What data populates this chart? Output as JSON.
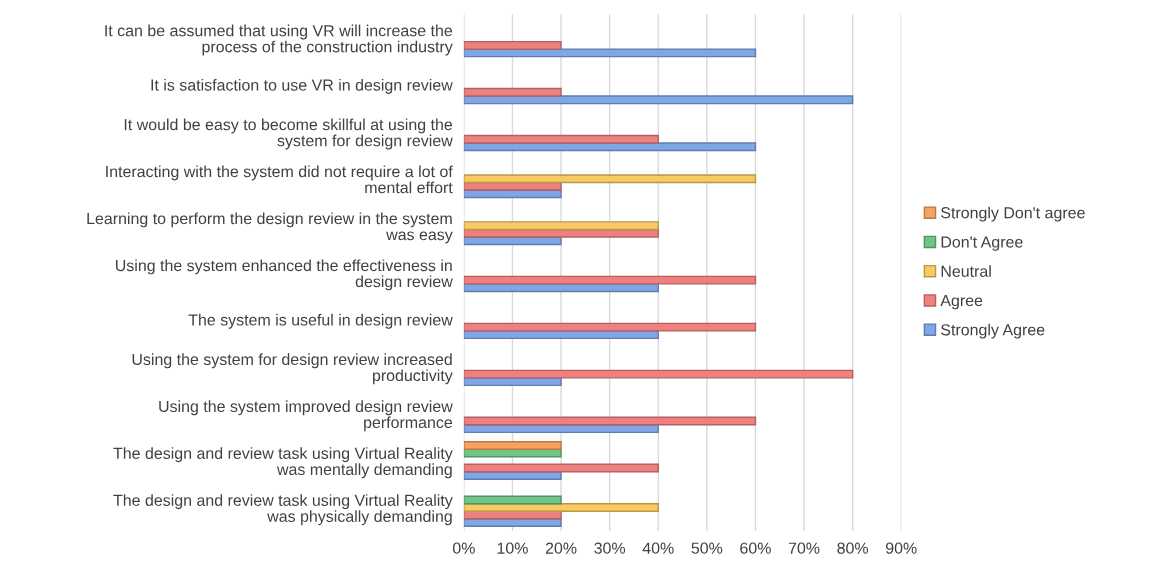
{
  "chart_data": {
    "type": "bar",
    "orientation": "horizontal",
    "categories": [
      "It can be assumed that using VR will increase the\nprocess of the construction industry",
      "It is satisfaction to use VR in design review",
      "It would be easy to become skillful at using the\nsystem for design review",
      "Interacting with the system did not require a lot of\nmental effort",
      "Learning to perform the design review in the system\nwas easy",
      "Using the system enhanced the effectiveness in\ndesign review",
      "The system is useful in design review",
      "Using the system for design review increased\nproductivity",
      "Using the system improved design review\nperformance",
      "The design and review task using Virtual Reality\nwas mentally demanding",
      "The design and review task using Virtual Reality\nwas physically demanding"
    ],
    "series": [
      {
        "name": "Strongly Agree",
        "color": "#7fa6e6",
        "values": [
          60,
          80,
          60,
          20,
          20,
          40,
          40,
          20,
          40,
          20,
          20
        ]
      },
      {
        "name": "Agree",
        "color": "#ee8080",
        "values": [
          20,
          20,
          40,
          20,
          40,
          60,
          60,
          80,
          60,
          40,
          20
        ]
      },
      {
        "name": "Neutral",
        "color": "#f7cb62",
        "values": [
          null,
          null,
          null,
          60,
          40,
          null,
          null,
          null,
          null,
          null,
          40
        ]
      },
      {
        "name": "Don't Agree",
        "color": "#6fc487",
        "values": [
          null,
          null,
          null,
          null,
          null,
          null,
          null,
          null,
          null,
          20,
          20
        ]
      },
      {
        "name": "Strongly Don't agree",
        "color": "#f5a35e",
        "values": [
          null,
          null,
          null,
          null,
          null,
          null,
          null,
          null,
          null,
          20,
          null
        ]
      }
    ],
    "xlim": [
      0,
      90
    ],
    "xticks": [
      {
        "value": 0,
        "label": "0%"
      },
      {
        "value": 10,
        "label": "10%"
      },
      {
        "value": 20,
        "label": "20%"
      },
      {
        "value": 30,
        "label": "30%"
      },
      {
        "value": 40,
        "label": "40%"
      },
      {
        "value": 50,
        "label": "50%"
      },
      {
        "value": 60,
        "label": "60%"
      },
      {
        "value": 70,
        "label": "70%"
      },
      {
        "value": 80,
        "label": "80%"
      },
      {
        "value": 90,
        "label": "90%"
      }
    ],
    "grid": "x",
    "legend": "right"
  }
}
